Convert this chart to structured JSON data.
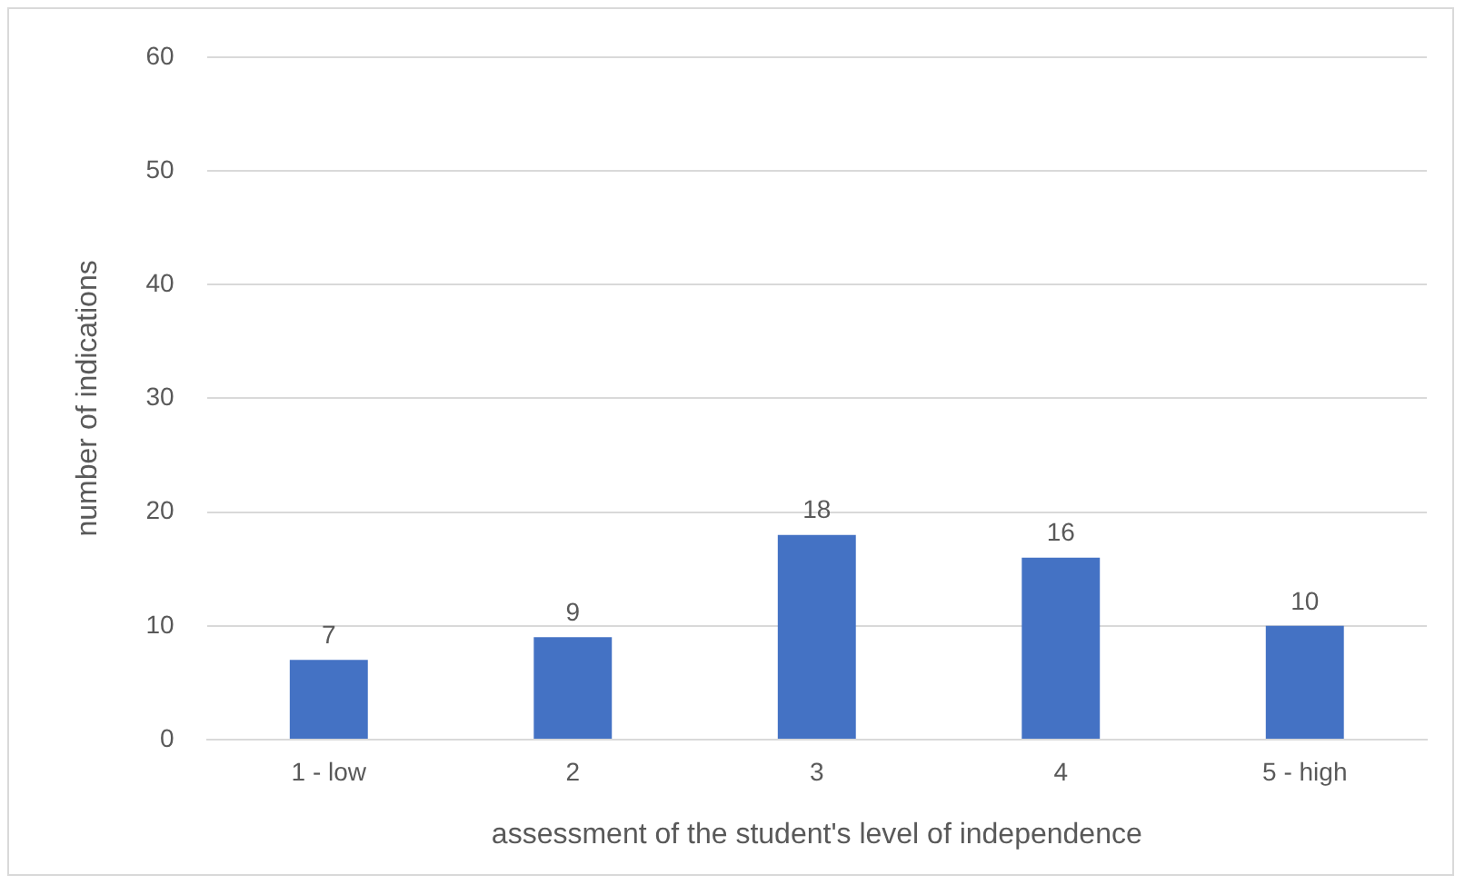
{
  "chart_data": {
    "type": "bar",
    "xlabel": "assessment of the student's level of independence",
    "ylabel": "number of indications",
    "categories": [
      "1 - low",
      "2",
      "3",
      "4",
      "5 - high"
    ],
    "values": [
      7,
      9,
      18,
      16,
      10
    ],
    "color": "#4472c4",
    "ylim": [
      0,
      60
    ],
    "yticks": [
      0,
      10,
      20,
      30,
      40,
      50,
      60
    ],
    "grid": "y",
    "data_labels": true,
    "legend": false
  }
}
